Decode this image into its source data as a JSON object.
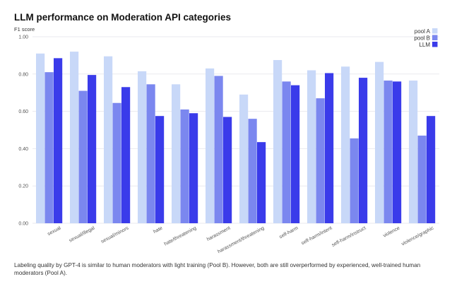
{
  "title": "LLM performance on Moderation API categories",
  "caption": "Labeling quality by GPT-4 is similar to human moderators with light training (Pool B). However, both are still overperformed by experienced, well-trained human moderators (Pool A).",
  "colors": {
    "pool_a": "#c8d8f8",
    "pool_b": "#7b87ef",
    "llm": "#3a3bea",
    "grid": "#e9e9ef"
  },
  "chart_data": {
    "type": "bar",
    "title": "LLM performance on Moderation API categories",
    "ylabel": "F1 score",
    "xlabel": "",
    "ylim": [
      0,
      1.0
    ],
    "yticks": [
      "0.00",
      "0.20",
      "0.40",
      "0.60",
      "0.80",
      "1.00"
    ],
    "grid": true,
    "legend_position": "top-right",
    "categories": [
      "sexual",
      "sexual/illegal",
      "sexual/minors",
      "hate",
      "hate/threatening",
      "harassment",
      "harassment/threatening",
      "self-harm",
      "self-harm/intent",
      "self-harm/instruct",
      "violence",
      "violence/graphic"
    ],
    "series": [
      {
        "name": "pool A",
        "values": [
          0.91,
          0.92,
          0.895,
          0.815,
          0.745,
          0.83,
          0.69,
          0.875,
          0.82,
          0.84,
          0.865,
          0.765
        ]
      },
      {
        "name": "pool B",
        "values": [
          0.81,
          0.71,
          0.645,
          0.745,
          0.61,
          0.79,
          0.56,
          0.76,
          0.67,
          0.455,
          0.765,
          0.47
        ]
      },
      {
        "name": "LLM",
        "values": [
          0.885,
          0.795,
          0.73,
          0.575,
          0.59,
          0.57,
          0.435,
          0.74,
          0.805,
          0.78,
          0.76,
          0.575
        ]
      }
    ]
  }
}
